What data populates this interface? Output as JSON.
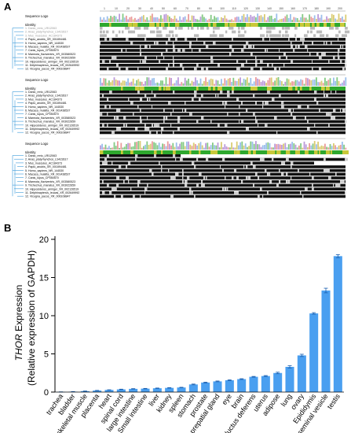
{
  "panel_a": {
    "letter": "A",
    "ruler_marks": [
      "1",
      "10",
      "20",
      "30",
      "40",
      "50",
      "60",
      "70",
      "80",
      "90",
      "100",
      "110",
      "120",
      "130",
      "140",
      "150",
      "160",
      "170",
      "180",
      "190",
      "200"
    ],
    "block_labels": [
      "Sequence Logo",
      "Identity"
    ],
    "sequences": [
      "1. Danio_rerio_LRI12063",
      "2. Anas_platyrhynchos_LS423617",
      "3. Mus_musculus_AC184373",
      "4. Papio_anubis_XR_001894481",
      "5. Homo_sapiens_NR_144530",
      "6. Macaca_mulatta_XR_001438537",
      "7. Canis_lupus_CP050570",
      "8. Marmota_flaviventris_XR_003580523",
      "9. Trichechus_manatus_XR_003022659",
      "10. Hipposideros_armiger_XR_002126519",
      "11. Delphinapterus_leucas_XR_002649992",
      "12. Vicugna_pacos_XR_006108847"
    ]
  },
  "panel_b": {
    "letter": "B",
    "ylabel_italic": "THOR",
    "ylabel_rest": " Expression",
    "ylabel_line2": "(Relative expression of GAPDH)",
    "bar_color": "#4a9ff0"
  },
  "chart_data": {
    "type": "bar",
    "title": "",
    "xlabel": "",
    "ylabel": "THOR Expression (Relative expression of GAPDH)",
    "ylim": [
      0,
      20
    ],
    "yticks": [
      "0",
      "5",
      "10",
      "15",
      "20"
    ],
    "categories": [
      "trachea",
      "bladder",
      "skeletal muscle",
      "placenta",
      "heart",
      "spinal cord",
      "large intestine",
      "Small intestine",
      "liver",
      "kidney",
      "spleen",
      "stomach",
      "prostate",
      "prepatial gland",
      "eye",
      "brain",
      "ductus deferens",
      "uterus",
      "adipose",
      "lung",
      "ovary",
      "Epididymis",
      "seminal vesicle",
      "testis"
    ],
    "values": [
      0.02,
      0.05,
      0.12,
      0.2,
      0.28,
      0.35,
      0.42,
      0.45,
      0.5,
      0.55,
      0.6,
      1.0,
      1.25,
      1.4,
      1.55,
      1.7,
      2.0,
      2.1,
      2.5,
      3.3,
      4.8,
      10.3,
      13.3,
      17.8
    ],
    "errors": [
      0.01,
      0.01,
      0.02,
      0.02,
      0.02,
      0.03,
      0.03,
      0.03,
      0.03,
      0.03,
      0.03,
      0.05,
      0.05,
      0.05,
      0.05,
      0.05,
      0.05,
      0.06,
      0.1,
      0.15,
      0.15,
      0.1,
      0.3,
      0.2
    ],
    "grid": false,
    "legend": "none"
  }
}
